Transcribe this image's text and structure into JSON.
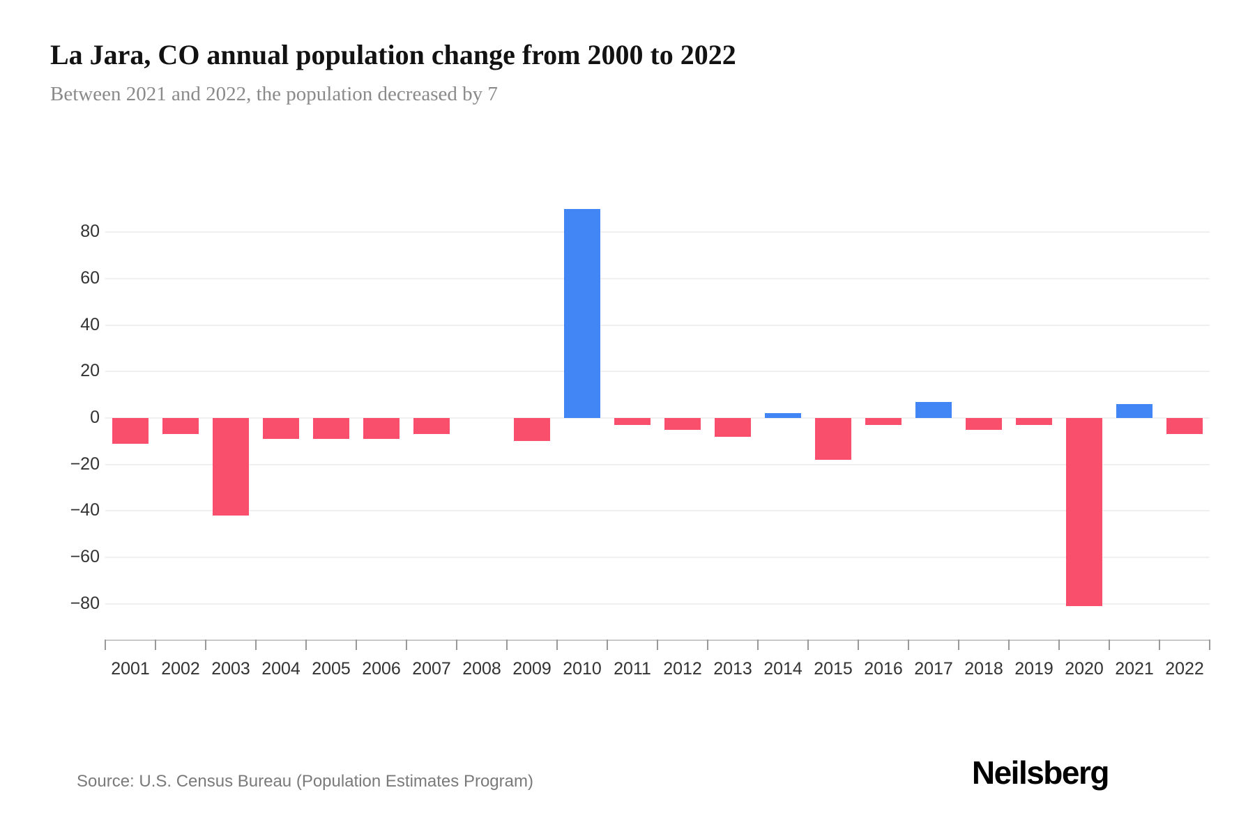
{
  "header": {
    "title": "La Jara, CO annual population change from 2000 to 2022",
    "subtitle": "Between 2021 and 2022, the population decreased by 7"
  },
  "chart_data": {
    "type": "bar",
    "title": "La Jara, CO annual population change from 2000 to 2022",
    "subtitle": "Between 2021 and 2022, the population decreased by 7",
    "series_name": "Annual population change",
    "categories": [
      "2001",
      "2002",
      "2003",
      "2004",
      "2005",
      "2006",
      "2007",
      "2008",
      "2009",
      "2010",
      "2011",
      "2012",
      "2013",
      "2014",
      "2015",
      "2016",
      "2017",
      "2018",
      "2019",
      "2020",
      "2021",
      "2022"
    ],
    "values": [
      -11,
      -7,
      -42,
      -9,
      -9,
      -9,
      -7,
      0,
      -10,
      90,
      -3,
      -5,
      -8,
      2,
      -18,
      -3,
      7,
      -5,
      -3,
      -81,
      6,
      -7
    ],
    "xlabel": "",
    "ylabel": "",
    "y_ticks": [
      80,
      60,
      40,
      20,
      0,
      -20,
      -40,
      -60,
      -80
    ],
    "ylim": [
      -95,
      103
    ],
    "grid": true,
    "legend": "none",
    "colors": {
      "positive": "#4285f4",
      "negative": "#f94f6d",
      "gridline": "#f0f0f0",
      "axis_line": "#c8c8c8",
      "tick": "#999999",
      "label": "#333333"
    }
  },
  "footer": {
    "source": "Source: U.S. Census Bureau (Population Estimates Program)",
    "logo": "Neilsberg"
  }
}
